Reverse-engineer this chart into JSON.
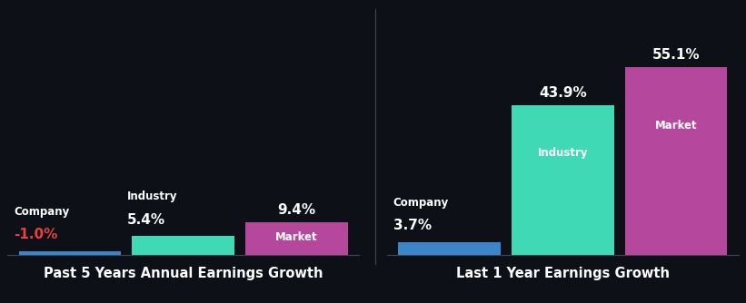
{
  "background_color": "#0d1117",
  "groups": [
    {
      "title": "Past 5 Years Annual Earnings Growth",
      "bars": [
        {
          "label": "Company",
          "value": -1.0,
          "color": "#3a86c8",
          "value_color": "#e84040",
          "label_color": "#ffffff"
        },
        {
          "label": "Industry",
          "value": 5.4,
          "color": "#40d9b5",
          "value_color": "#ffffff",
          "label_color": "#ffffff"
        },
        {
          "label": "Market",
          "value": 9.4,
          "color": "#b5479c",
          "value_color": "#ffffff",
          "label_color": "#ffffff"
        }
      ]
    },
    {
      "title": "Last 1 Year Earnings Growth",
      "bars": [
        {
          "label": "Company",
          "value": 3.7,
          "color": "#3a86c8",
          "value_color": "#ffffff",
          "label_color": "#ffffff"
        },
        {
          "label": "Industry",
          "value": 43.9,
          "color": "#40d9b5",
          "value_color": "#ffffff",
          "label_color": "#ffffff"
        },
        {
          "label": "Market",
          "value": 55.1,
          "color": "#b5479c",
          "value_color": "#ffffff",
          "label_color": "#ffffff"
        }
      ]
    }
  ],
  "global_max": 55.1,
  "label_fontsize": 8.5,
  "value_fontsize": 11,
  "title_fontsize": 10.5,
  "bar_width": 0.9
}
